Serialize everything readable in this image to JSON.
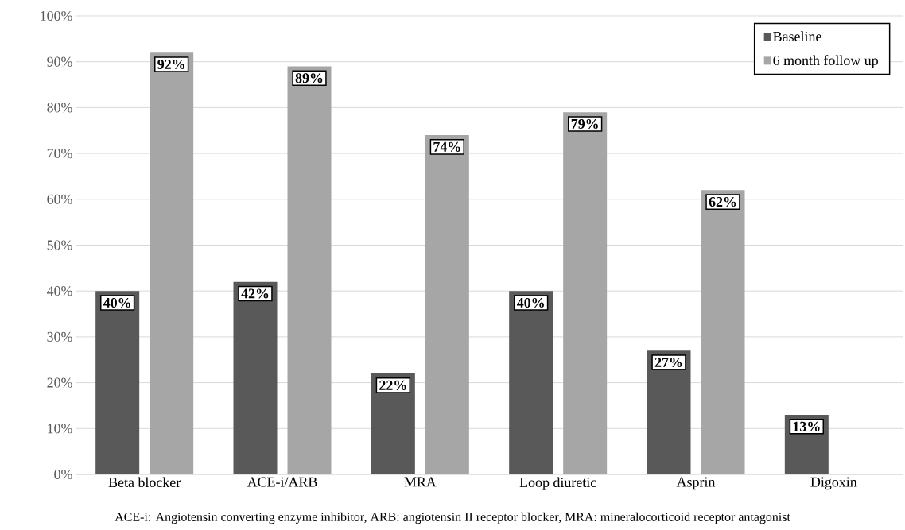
{
  "chart_data": {
    "type": "bar",
    "categories": [
      "Beta blocker",
      "ACE-i/ARB",
      "MRA",
      "Loop diuretic",
      "Asprin",
      "Digoxin"
    ],
    "series": [
      {
        "name": "Baseline",
        "color": "#595959",
        "values": [
          40,
          42,
          22,
          40,
          27,
          13
        ],
        "value_labels": [
          "40%",
          "42%",
          "22%",
          "40%",
          "27%",
          "13%"
        ]
      },
      {
        "name": "6 month follow up",
        "color": "#a6a6a6",
        "values": [
          92,
          89,
          74,
          79,
          62,
          null
        ],
        "value_labels": [
          "92%",
          "89%",
          "74%",
          "79%",
          "62%",
          null
        ]
      }
    ],
    "ylim": [
      0,
      100
    ],
    "yticks": [
      {
        "value": 0,
        "label": "0%"
      },
      {
        "value": 10,
        "label": "10%"
      },
      {
        "value": 20,
        "label": "20%"
      },
      {
        "value": 30,
        "label": "30%"
      },
      {
        "value": 40,
        "label": "40%"
      },
      {
        "value": 50,
        "label": "50%"
      },
      {
        "value": 60,
        "label": "60%"
      },
      {
        "value": 70,
        "label": "70%"
      },
      {
        "value": 80,
        "label": "80%"
      },
      {
        "value": 90,
        "label": "90%"
      },
      {
        "value": 100,
        "label": "100%"
      }
    ],
    "grid": "y",
    "legend": "top right",
    "annotations": [
      "ACE-i: Angiotensin converting enzyme inhibitor, ARB: angiotensin II receptor blocker, MRA: mineralocorticoid receptor antagonist"
    ]
  }
}
